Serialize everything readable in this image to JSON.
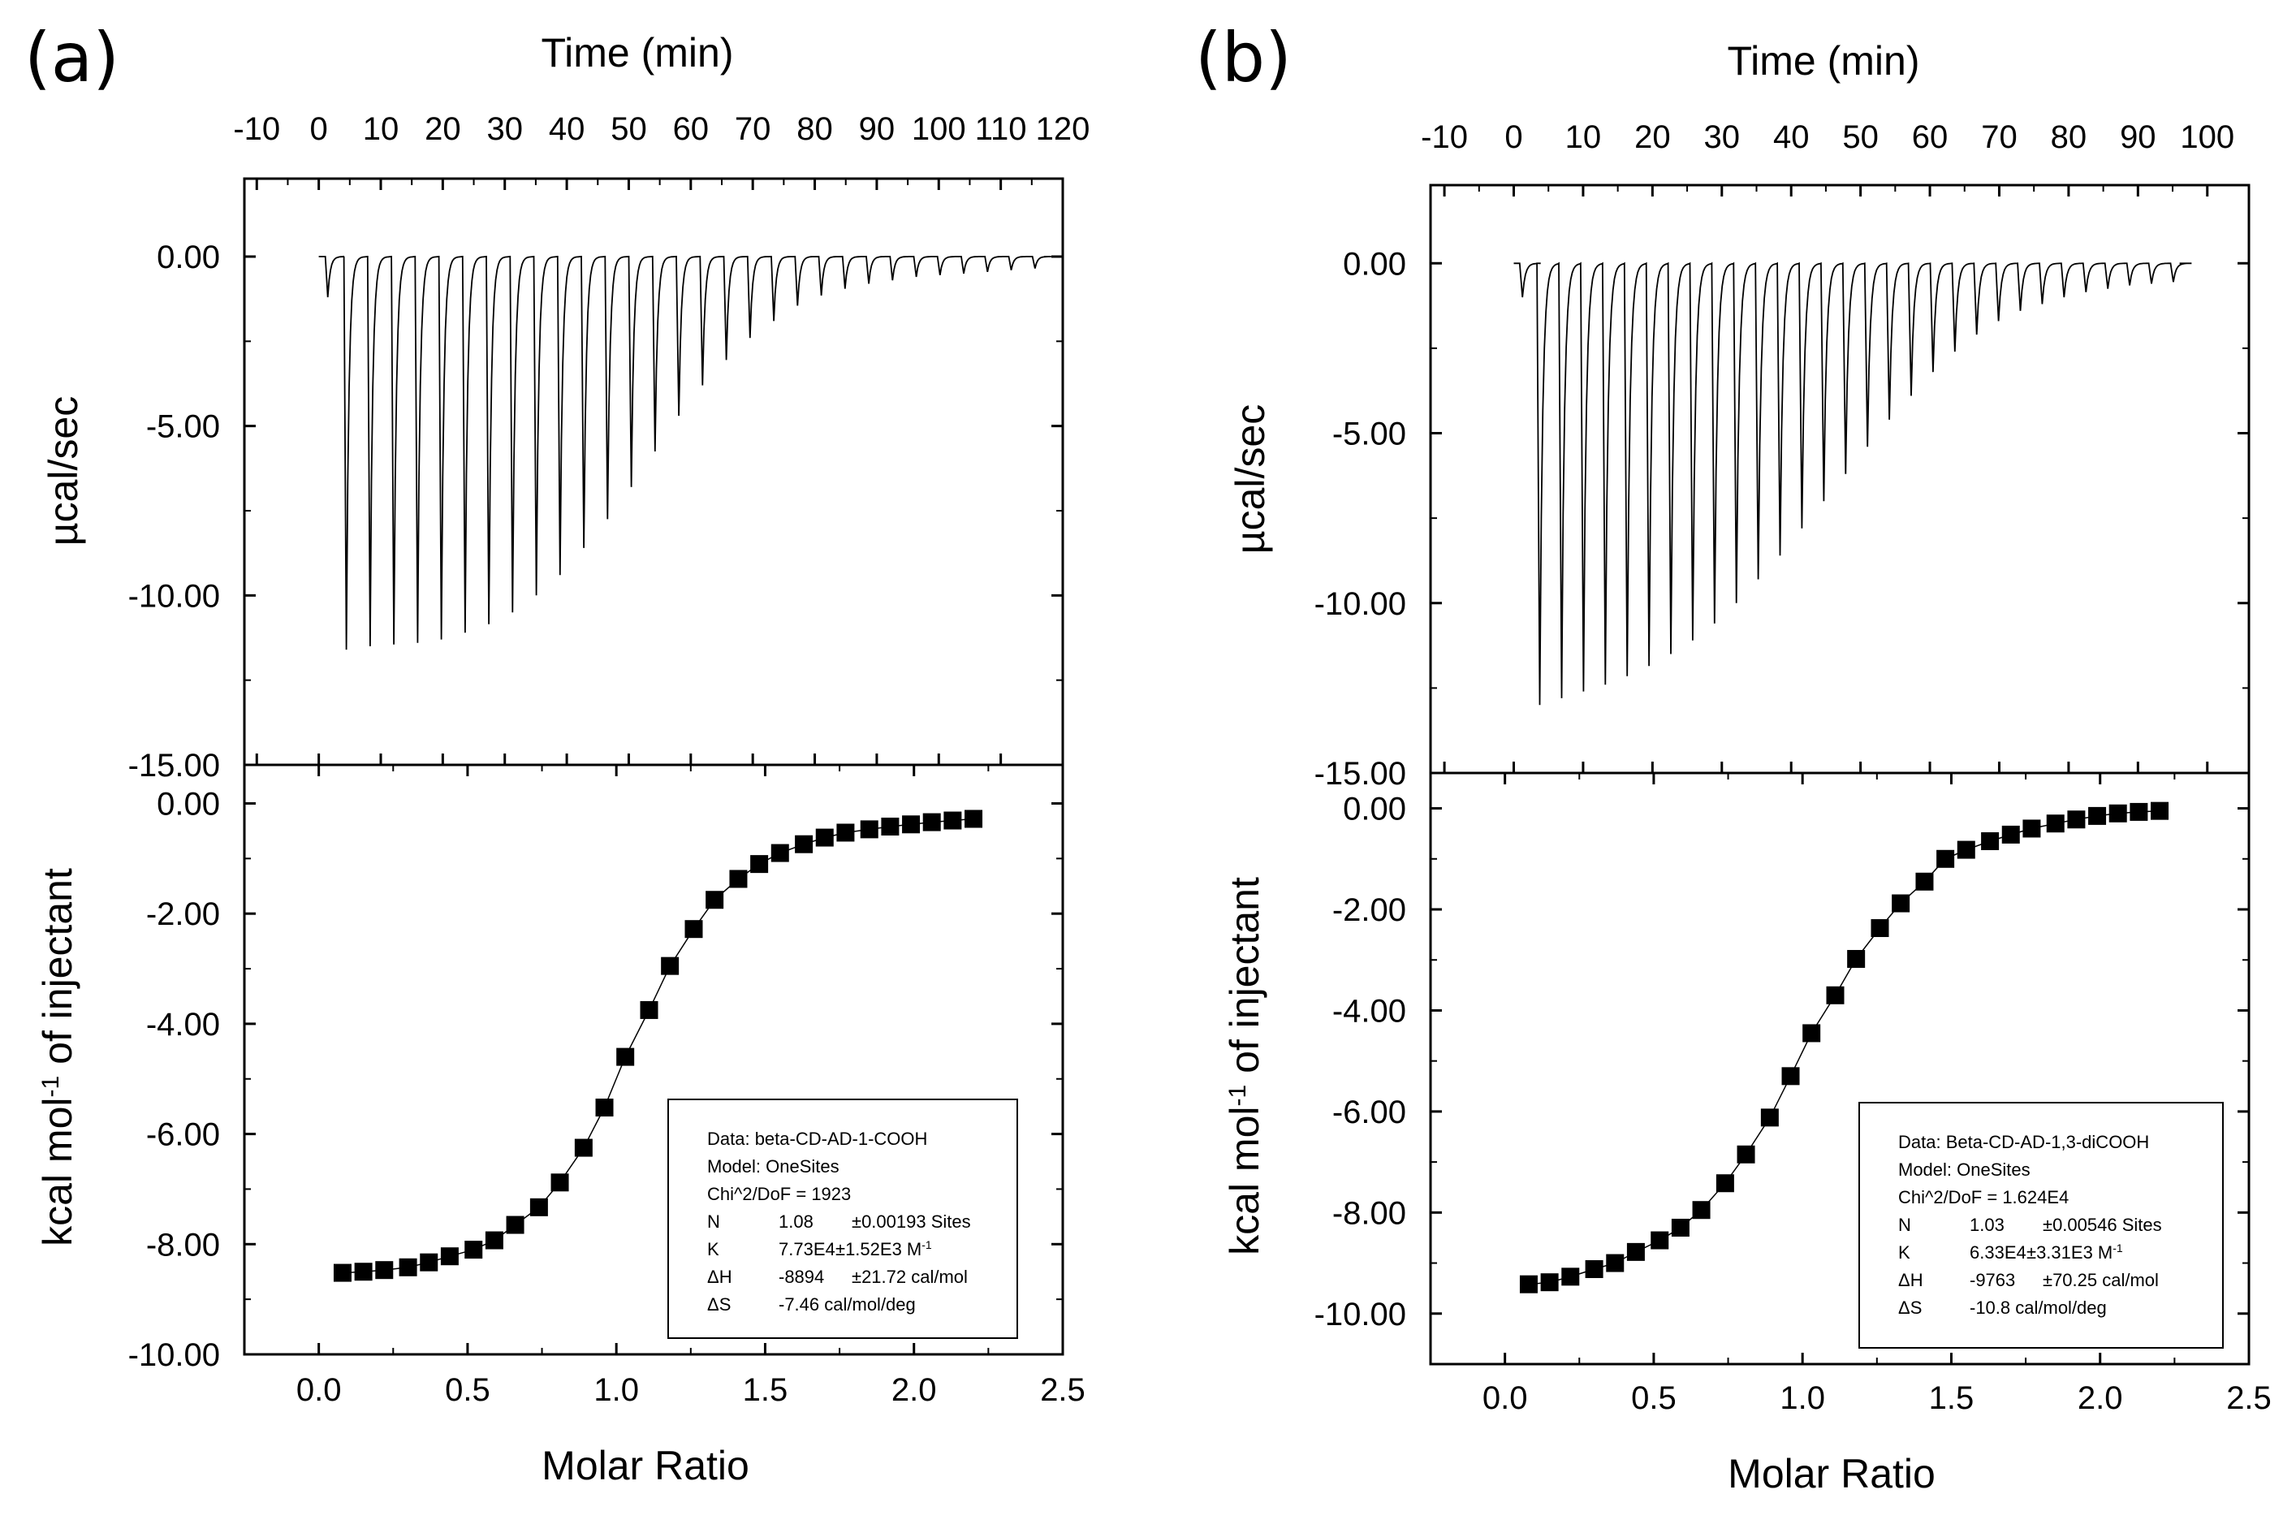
{
  "chart_data": [
    {
      "type": "line",
      "panel_label": "(a)",
      "top": {
        "xlabel": "Time (min)",
        "ylabel": "µcal/sec",
        "xlim": [
          -12,
          120
        ],
        "ylim": [
          -15,
          2.3
        ],
        "xticks": [
          -10,
          0,
          10,
          20,
          30,
          40,
          50,
          60,
          70,
          80,
          90,
          100,
          110,
          120
        ],
        "yticks": [
          0,
          -5,
          -10,
          -15
        ],
        "ytick_labels": [
          "0.00",
          "-5.00",
          "-10.00",
          "-15.00"
        ],
        "baseline_start_min": 0,
        "baseline_end_min": 117,
        "first_injection": {
          "time": 1.2,
          "depth": -1.2
        },
        "injections": {
          "start_time": 4.2,
          "interval": 3.83,
          "depths": [
            -11.6,
            -11.5,
            -11.45,
            -11.4,
            -11.3,
            -11.1,
            -10.85,
            -10.5,
            -10.0,
            -9.4,
            -8.6,
            -7.75,
            -6.8,
            -5.75,
            -4.7,
            -3.8,
            -3.05,
            -2.4,
            -1.9,
            -1.45,
            -1.15,
            -0.95,
            -0.8,
            -0.7,
            -0.6,
            -0.55,
            -0.5,
            -0.45,
            -0.4,
            -0.35
          ]
        }
      },
      "bottom": {
        "xlabel": "Molar Ratio",
        "ylabel": "kcal mol⁻¹ of injectant",
        "xlim": [
          -0.25,
          2.5
        ],
        "ylim": [
          -10,
          0.7
        ],
        "xticks": [
          0,
          0.5,
          1,
          1.5,
          2,
          2.5
        ],
        "xtick_labels": [
          "0.0",
          "0.5",
          "1.0",
          "1.5",
          "2.0",
          "2.5"
        ],
        "yticks": [
          0,
          -2,
          -4,
          -6,
          -8,
          -10
        ],
        "ytick_labels": [
          "0.00",
          "-2.00",
          "-4.00",
          "-6.00",
          "-8.00",
          "-10.00"
        ],
        "x": [
          0.08,
          0.15,
          0.22,
          0.3,
          0.37,
          0.44,
          0.52,
          0.59,
          0.66,
          0.74,
          0.81,
          0.89,
          0.96,
          1.03,
          1.11,
          1.18,
          1.26,
          1.33,
          1.41,
          1.48,
          1.55,
          1.63,
          1.7,
          1.77,
          1.85,
          1.92,
          1.99,
          2.06,
          2.13,
          2.2
        ],
        "y": [
          -8.52,
          -8.5,
          -8.47,
          -8.42,
          -8.33,
          -8.22,
          -8.1,
          -7.93,
          -7.65,
          -7.33,
          -6.88,
          -6.25,
          -5.52,
          -4.6,
          -3.75,
          -2.95,
          -2.28,
          -1.75,
          -1.37,
          -1.1,
          -0.9,
          -0.74,
          -0.62,
          -0.53,
          -0.47,
          -0.42,
          -0.38,
          -0.34,
          -0.31,
          -0.28
        ]
      },
      "legend": {
        "placement": "bottom-right",
        "lines": [
          {
            "label": "Data: beta-CD-AD-1-COOH"
          },
          {
            "label": "Model: OneSites"
          },
          {
            "label": "Chi^2/DoF = 1923"
          },
          {
            "label": "N",
            "value": "1.08",
            "error": "±0.00193 Sites"
          },
          {
            "label": "K",
            "value": "7.73E4",
            "error": "±1.52E3 M⁻¹"
          },
          {
            "label": "ΔH",
            "value": "-8894",
            "error": "±21.72 cal/mol"
          },
          {
            "label": "ΔS",
            "value": "-7.46 cal/mol/deg",
            "error": ""
          }
        ]
      }
    },
    {
      "type": "line",
      "panel_label": "(b)",
      "top": {
        "xlabel": "Time (min)",
        "ylabel": "µcal/sec",
        "xlim": [
          -12,
          106
        ],
        "ylim": [
          -15,
          2.3
        ],
        "xticks": [
          -10,
          0,
          10,
          20,
          30,
          40,
          50,
          60,
          70,
          80,
          90,
          100
        ],
        "yticks": [
          0,
          -5,
          -10,
          -15
        ],
        "ytick_labels": [
          "0.00",
          "-5.00",
          "-10.00",
          "-15.00"
        ],
        "baseline_start_min": 0,
        "baseline_end_min": 96,
        "first_injection": {
          "time": 1.0,
          "depth": -1.0
        },
        "injections": {
          "start_time": 3.5,
          "interval": 3.15,
          "depths": [
            -13.0,
            -12.8,
            -12.6,
            -12.4,
            -12.15,
            -11.85,
            -11.5,
            -11.1,
            -10.6,
            -10.0,
            -9.3,
            -8.6,
            -7.8,
            -7.0,
            -6.2,
            -5.4,
            -4.6,
            -3.9,
            -3.2,
            -2.6,
            -2.1,
            -1.7,
            -1.4,
            -1.2,
            -1.0,
            -0.85,
            -0.75,
            -0.65,
            -0.6,
            -0.55
          ]
        }
      },
      "bottom": {
        "xlabel": "Molar Ratio",
        "ylabel": "kcal mol⁻¹ of injectant",
        "xlim": [
          -0.25,
          2.5
        ],
        "ylim": [
          -11,
          0.7
        ],
        "xticks": [
          0,
          0.5,
          1,
          1.5,
          2,
          2.5
        ],
        "xtick_labels": [
          "0.0",
          "0.5",
          "1.0",
          "1.5",
          "2.0",
          "2.5"
        ],
        "yticks": [
          0,
          -2,
          -4,
          -6,
          -8,
          -10
        ],
        "ytick_labels": [
          "0.00",
          "-2.00",
          "-4.00",
          "-6.00",
          "-8.00",
          "-10.00"
        ],
        "x": [
          0.08,
          0.15,
          0.22,
          0.3,
          0.37,
          0.44,
          0.52,
          0.59,
          0.66,
          0.74,
          0.81,
          0.89,
          0.96,
          1.03,
          1.11,
          1.18,
          1.26,
          1.33,
          1.41,
          1.48,
          1.55,
          1.63,
          1.7,
          1.77,
          1.85,
          1.92,
          1.99,
          2.06,
          2.13,
          2.2
        ],
        "y": [
          -9.42,
          -9.38,
          -9.27,
          -9.12,
          -9.0,
          -8.78,
          -8.55,
          -8.3,
          -7.95,
          -7.42,
          -6.85,
          -6.12,
          -5.3,
          -4.45,
          -3.7,
          -2.98,
          -2.37,
          -1.88,
          -1.45,
          -1.0,
          -0.82,
          -0.65,
          -0.52,
          -0.4,
          -0.3,
          -0.22,
          -0.15,
          -0.1,
          -0.07,
          -0.05
        ]
      },
      "legend": {
        "placement": "bottom-right",
        "lines": [
          {
            "label": "Data: Beta-CD-AD-1,3-diCOOH"
          },
          {
            "label": "Model: OneSites"
          },
          {
            "label": "Chi^2/DoF = 1.624E4"
          },
          {
            "label": "N",
            "value": "1.03",
            "error": "±0.00546 Sites"
          },
          {
            "label": "K",
            "value": "6.33E4",
            "error": "±3.31E3 M⁻¹"
          },
          {
            "label": "ΔH",
            "value": "-9763",
            "error": "±70.25 cal/mol"
          },
          {
            "label": "ΔS",
            "value": "-10.8 cal/mol/deg",
            "error": ""
          }
        ]
      }
    }
  ]
}
